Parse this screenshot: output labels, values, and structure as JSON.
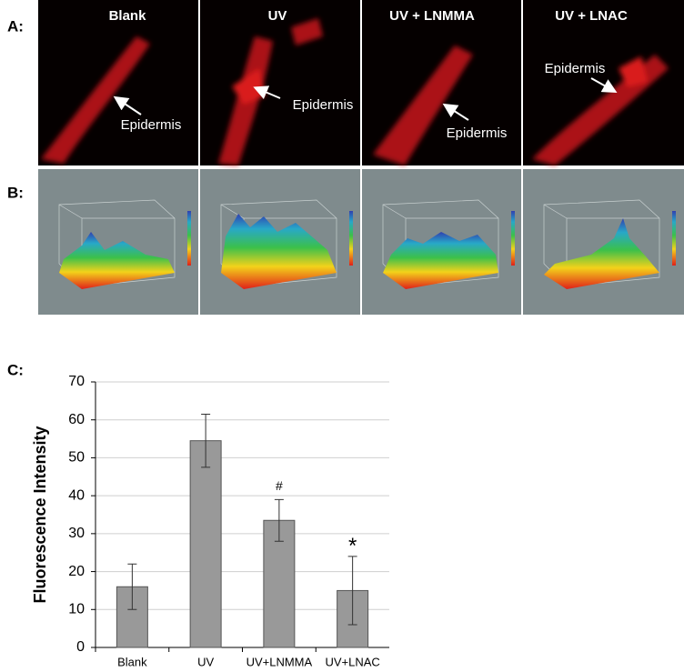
{
  "panels": {
    "a_label": "A:",
    "b_label": "B:",
    "c_label": "C:",
    "micrographs": [
      {
        "title": "Blank",
        "annotation": "Epidermis"
      },
      {
        "title": "UV",
        "annotation": "Epidermis"
      },
      {
        "title": "UV + LNMMA",
        "annotation": "Epidermis"
      },
      {
        "title": "UV + LNAC",
        "annotation": "Epidermis"
      }
    ]
  },
  "chart_data": {
    "type": "bar",
    "y_label": "Fluorescence Intensity",
    "categories": [
      "Blank",
      "UV",
      "UV+LNMMA",
      "UV+LNAC"
    ],
    "values": [
      16,
      54.5,
      33.5,
      15
    ],
    "errors": [
      6,
      7,
      5.5,
      9
    ],
    "annotations": [
      null,
      null,
      "#",
      "*"
    ],
    "color": "#999999",
    "ylim": [
      0,
      70
    ],
    "yticks": [
      0,
      10,
      20,
      30,
      40,
      50,
      60,
      70
    ],
    "grid": true
  }
}
